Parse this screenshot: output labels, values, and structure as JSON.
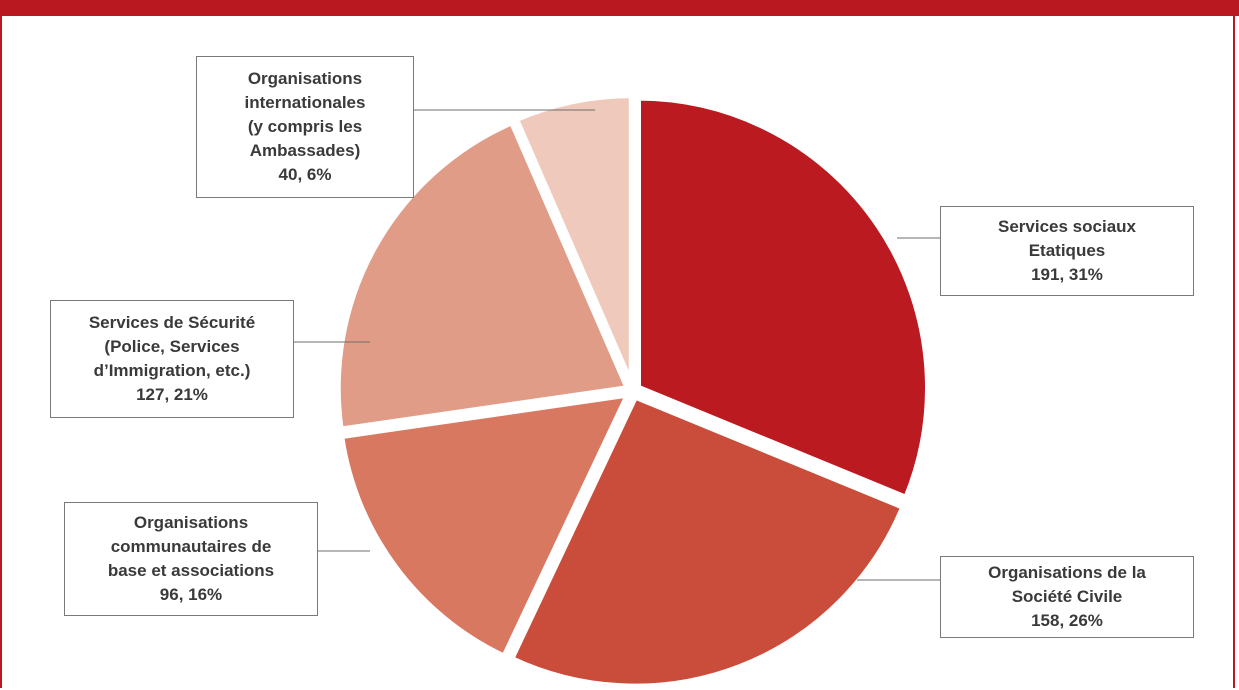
{
  "chart_data": {
    "type": "pie",
    "title": "",
    "start_angle_deg": 0,
    "direction": "clockwise",
    "slices": [
      {
        "label": "Services sociaux\nEtatiques",
        "value": 191,
        "percent": "31%",
        "color": "#bb1a20"
      },
      {
        "label": "Organisations de la\nSociété Civile",
        "value": 158,
        "percent": "26%",
        "color": "#c94d3a"
      },
      {
        "label": "Organisations\ncommunautaires de\nbase et associations",
        "value": 96,
        "percent": "16%",
        "color": "#d87860"
      },
      {
        "label": "Services de Sécurité\n(Police, Services\nd’Immigration, etc.)",
        "value": 127,
        "percent": "21%",
        "color": "#e09c86"
      },
      {
        "label": "Organisations\ninternationales\n(y compris les\nAmbassades)",
        "value": 40,
        "percent": "6%",
        "color": "#efc9bb"
      }
    ],
    "legend": "none",
    "data_labels": "callout boxes with value and percent"
  },
  "labels_text": [
    {
      "name": "Services sociaux\nEtatiques",
      "value_text": "191, 31%"
    },
    {
      "name": "Organisations de la\nSociété Civile",
      "value_text": "158, 26%"
    },
    {
      "name": "Organisations\ncommunautaires de\nbase et associations",
      "value_text": "96, 16%"
    },
    {
      "name": "Services de Sécurité\n(Police, Services\nd’Immigration, etc.)",
      "value_text": "127, 21%"
    },
    {
      "name": "Organisations\ninternationales\n(y compris les\nAmbassades)",
      "value_text": "40, 6%"
    }
  ]
}
